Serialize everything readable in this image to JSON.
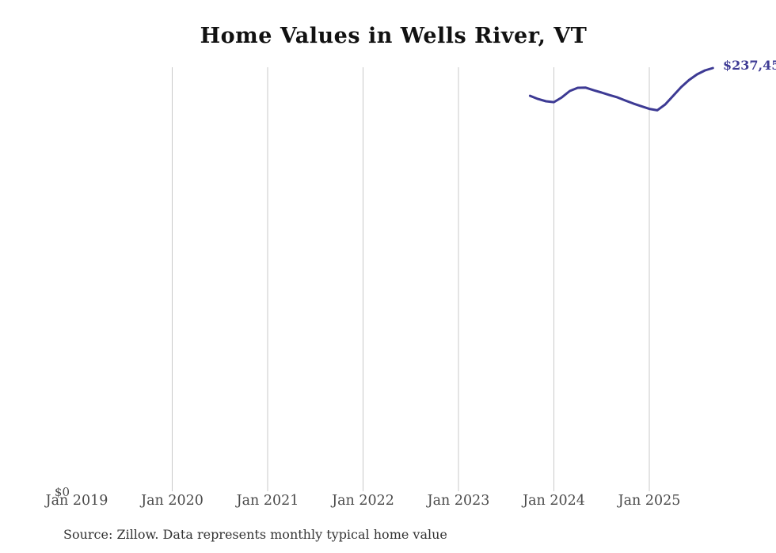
{
  "page": {
    "title": "Home Values in Wells River, VT"
  },
  "footer": {
    "source": "Source: Zillow. Data represents monthly typical home value"
  },
  "chart_data": {
    "type": "line",
    "title": "Home Values in Wells River, VT",
    "xlabel": "",
    "ylabel": "",
    "legend": "none",
    "grid": "vertical gridlines at yearly ticks (Jan 2020 through Jan 2025), none at Jan 2019",
    "x_tick_labels": [
      "Jan 2019",
      "Jan 2020",
      "Jan 2021",
      "Jan 2022",
      "Jan 2023",
      "Jan 2024",
      "Jan 2025"
    ],
    "y_tick_labels": [
      "$0"
    ],
    "y_zero_label": "$0",
    "end_point_label": "$237,45",
    "end_point_label_note": "clipped at right edge of image",
    "ylim": [
      0,
      237450
    ],
    "colors": {
      "line": "#3d3a94",
      "gridline": "#c9c9c9",
      "axis_text": "#4a4a4a",
      "title_text": "#111111",
      "source_text": "#333333",
      "end_label_text": "#3d3a94"
    },
    "series": [
      {
        "name": "Monthly typical home value",
        "x": [
          "Oct 2023",
          "Nov 2023",
          "Dec 2023",
          "Jan 2024",
          "Feb 2024",
          "Mar 2024",
          "Apr 2024",
          "May 2024",
          "Jun 2024",
          "Jul 2024",
          "Aug 2024",
          "Sep 2024",
          "Oct 2024",
          "Nov 2024",
          "Dec 2024",
          "Jan 2025",
          "Feb 2025",
          "Mar 2025",
          "Apr 2025",
          "May 2025",
          "Jun 2025",
          "Jul 2025",
          "Aug 2025",
          "Sep 2025"
        ],
        "values": [
          221800,
          220000,
          218700,
          218200,
          220900,
          224500,
          226300,
          226400,
          224900,
          223600,
          222200,
          220900,
          219100,
          217400,
          215900,
          214400,
          213600,
          216900,
          221800,
          226700,
          230700,
          233900,
          236100,
          237450
        ]
      }
    ]
  }
}
